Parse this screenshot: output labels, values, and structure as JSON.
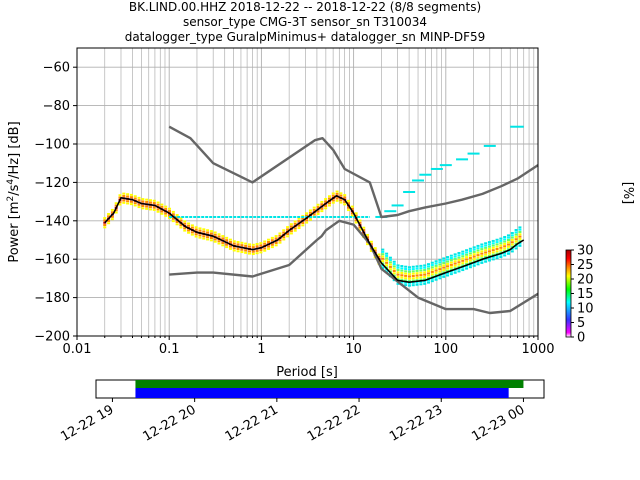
{
  "title_lines": [
    "BK.LIND.00.HHZ   2018-12-22 -- 2018-12-22  (8/8 segments)",
    "sensor_type CMG-3T sensor_sn T310034",
    "datalogger_type GuralpMinimus+ datalogger_sn MINP-DF59"
  ],
  "chart_data": [
    {
      "type": "line",
      "title": "BK.LIND.00.HHZ   2018-12-22 -- 2018-12-22  (8/8 segments)",
      "xlabel": "Period [s]",
      "ylabel": "Power [m²/s⁴/Hz] [dB]",
      "xscale": "log",
      "xlim": [
        0.01,
        1000
      ],
      "ylim": [
        -200,
        -50
      ],
      "xticks": [
        0.01,
        0.1,
        1,
        10,
        100,
        1000
      ],
      "xtick_labels": [
        "0.01",
        "0.1",
        "1",
        "10",
        "100",
        "1000"
      ],
      "yticks": [
        -200,
        -180,
        -160,
        -140,
        -120,
        -100,
        -80,
        -60
      ],
      "ytick_labels": [
        "−200",
        "−180",
        "−160",
        "−140",
        "−120",
        "−100",
        "−80",
        "−60"
      ],
      "grid": true,
      "series": [
        {
          "name": "",
          "color": "#000000",
          "x": [
            0.02,
            0.025,
            0.03,
            0.04,
            0.05,
            0.07,
            0.1,
            0.15,
            0.2,
            0.3,
            0.5,
            0.8,
            1,
            1.5,
            2,
            3,
            5,
            6.5,
            8,
            10,
            15,
            20,
            30,
            40,
            60,
            100,
            150,
            250,
            400,
            500,
            600,
            700
          ],
          "y": [
            -141,
            -136,
            -128,
            -129,
            -131,
            -132,
            -136,
            -143,
            -146,
            -148,
            -153,
            -155,
            -154,
            -150,
            -145,
            -139,
            -131,
            -127,
            -129,
            -136,
            -152,
            -162,
            -171,
            -172,
            -171,
            -167,
            -164,
            -160,
            -157,
            -155,
            -152,
            -150
          ]
        },
        {
          "name": "",
          "color": "#666666",
          "x": [
            0.1,
            0.2,
            0.3,
            0.8,
            2,
            4,
            4.5,
            5,
            7,
            10,
            15,
            20,
            50,
            100,
            200,
            300,
            500,
            1000
          ],
          "y": [
            -168,
            -167,
            -167,
            -169,
            -163,
            -150,
            -148,
            -145,
            -140,
            -142,
            -152,
            -165,
            -180,
            -186,
            -186,
            -188,
            -187,
            -178
          ]
        },
        {
          "name": "",
          "color": "#666666",
          "x": [
            0.1,
            0.17,
            0.3,
            0.8,
            3.8,
            4.6,
            6,
            8,
            15,
            20,
            30,
            40,
            60,
            100,
            150,
            250,
            400,
            600,
            1000
          ],
          "y": [
            -91,
            -97,
            -110,
            -120,
            -98,
            -97,
            -103,
            -113,
            -120,
            -138,
            -137,
            -135,
            -133,
            -131,
            -129,
            -126,
            -122,
            -118,
            -111
          ]
        }
      ],
      "cyan_upper_x": [
        20,
        25,
        30,
        40,
        50,
        60,
        80,
        100,
        150,
        200,
        300
      ],
      "cyan_upper_y": [
        -138,
        -135,
        -132,
        -125,
        -119,
        -116,
        -113,
        -111,
        -108,
        -105,
        -101
      ],
      "colorbar": {
        "label": "[%]",
        "ticks": [
          0,
          5,
          10,
          15,
          20,
          25,
          30
        ],
        "tick_labels": [
          "0",
          "5",
          "10",
          "15",
          "20",
          "25",
          "30"
        ],
        "colors": [
          "#ffffff",
          "#ff00ff",
          "#3333ff",
          "#00ffff",
          "#00ff00",
          "#ffff00",
          "#ff8800",
          "#ff0000",
          "#aa0000"
        ]
      }
    },
    {
      "type": "timeline",
      "xtick_labels": [
        "12-22 19",
        "12-22 20",
        "12-22 21",
        "12-22 22",
        "12-22 23",
        "12-23 00"
      ],
      "x_hours": [
        19,
        20,
        21,
        22,
        23,
        24
      ],
      "xlim_hours": [
        18.8,
        24.25
      ],
      "bars": [
        {
          "name": "",
          "color": "#008000",
          "start_hour": 19.28,
          "end_hour": 24.0
        },
        {
          "name": "",
          "color": "#0000ff",
          "start_hour": 19.28,
          "end_hour": 23.82
        }
      ]
    }
  ]
}
